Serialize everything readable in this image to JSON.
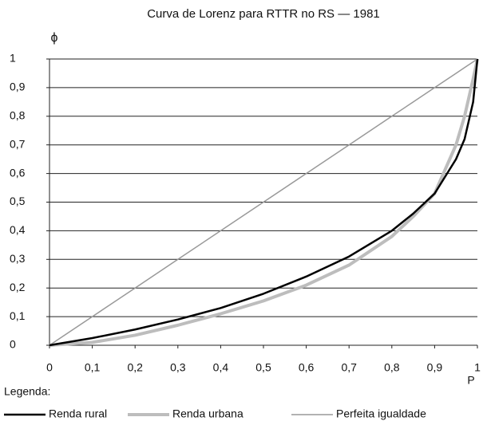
{
  "chart_data": {
    "type": "line",
    "title": "Curva de Lorenz para RTTR no RS — 1981",
    "xlabel": "P",
    "ylabel": "ϕ",
    "legend_title": "Legenda:",
    "legend": "bottom",
    "grid": true,
    "x": [
      0,
      0.1,
      0.2,
      0.3,
      0.4,
      0.5,
      0.6,
      0.7,
      0.8,
      0.85,
      0.9,
      0.95,
      0.97,
      0.99,
      1
    ],
    "series": [
      {
        "name": "Renda rural",
        "color": "#000000",
        "width": 2.5,
        "values": [
          0,
          0.025,
          0.055,
          0.09,
          0.13,
          0.18,
          0.24,
          0.31,
          0.4,
          0.46,
          0.53,
          0.65,
          0.72,
          0.85,
          1
        ]
      },
      {
        "name": "Renda urbana",
        "color": "#bdbdbd",
        "width": 4,
        "values": [
          0,
          0.01,
          0.035,
          0.07,
          0.11,
          0.155,
          0.21,
          0.28,
          0.38,
          0.45,
          0.53,
          0.7,
          0.8,
          0.93,
          1
        ]
      },
      {
        "name": "Perfeita igualdade",
        "color": "#999999",
        "width": 1.5,
        "values": [
          0,
          0.1,
          0.2,
          0.3,
          0.4,
          0.5,
          0.6,
          0.7,
          0.8,
          0.85,
          0.9,
          0.95,
          0.97,
          0.99,
          1
        ]
      }
    ],
    "xlim": [
      0,
      1
    ],
    "ylim": [
      0,
      1
    ],
    "xticks": [
      0,
      {
        "value": 0.1,
        "label": "0,1"
      },
      {
        "value": 0.2,
        "label": "0,2"
      },
      {
        "value": 0.3,
        "label": "0,3"
      },
      {
        "value": 0.4,
        "label": "0,4"
      },
      {
        "value": 0.5,
        "label": "0,5"
      },
      {
        "value": 0.6,
        "label": "0,6"
      },
      {
        "value": 0.7,
        "label": "0,7"
      },
      {
        "value": 0.8,
        "label": "0,8"
      },
      {
        "value": 0.9,
        "label": "0,9"
      },
      1
    ],
    "yticks": [
      0,
      {
        "value": 0.1,
        "label": "0,1"
      },
      {
        "value": 0.2,
        "label": "0,2"
      },
      {
        "value": 0.3,
        "label": "0,3"
      },
      {
        "value": 0.4,
        "label": "0,4"
      },
      {
        "value": 0.5,
        "label": "0,5"
      },
      {
        "value": 0.6,
        "label": "0,6"
      },
      {
        "value": 0.7,
        "label": "0,7"
      },
      {
        "value": 0.8,
        "label": "0,8"
      },
      {
        "value": 0.9,
        "label": "0,9"
      },
      1
    ]
  }
}
